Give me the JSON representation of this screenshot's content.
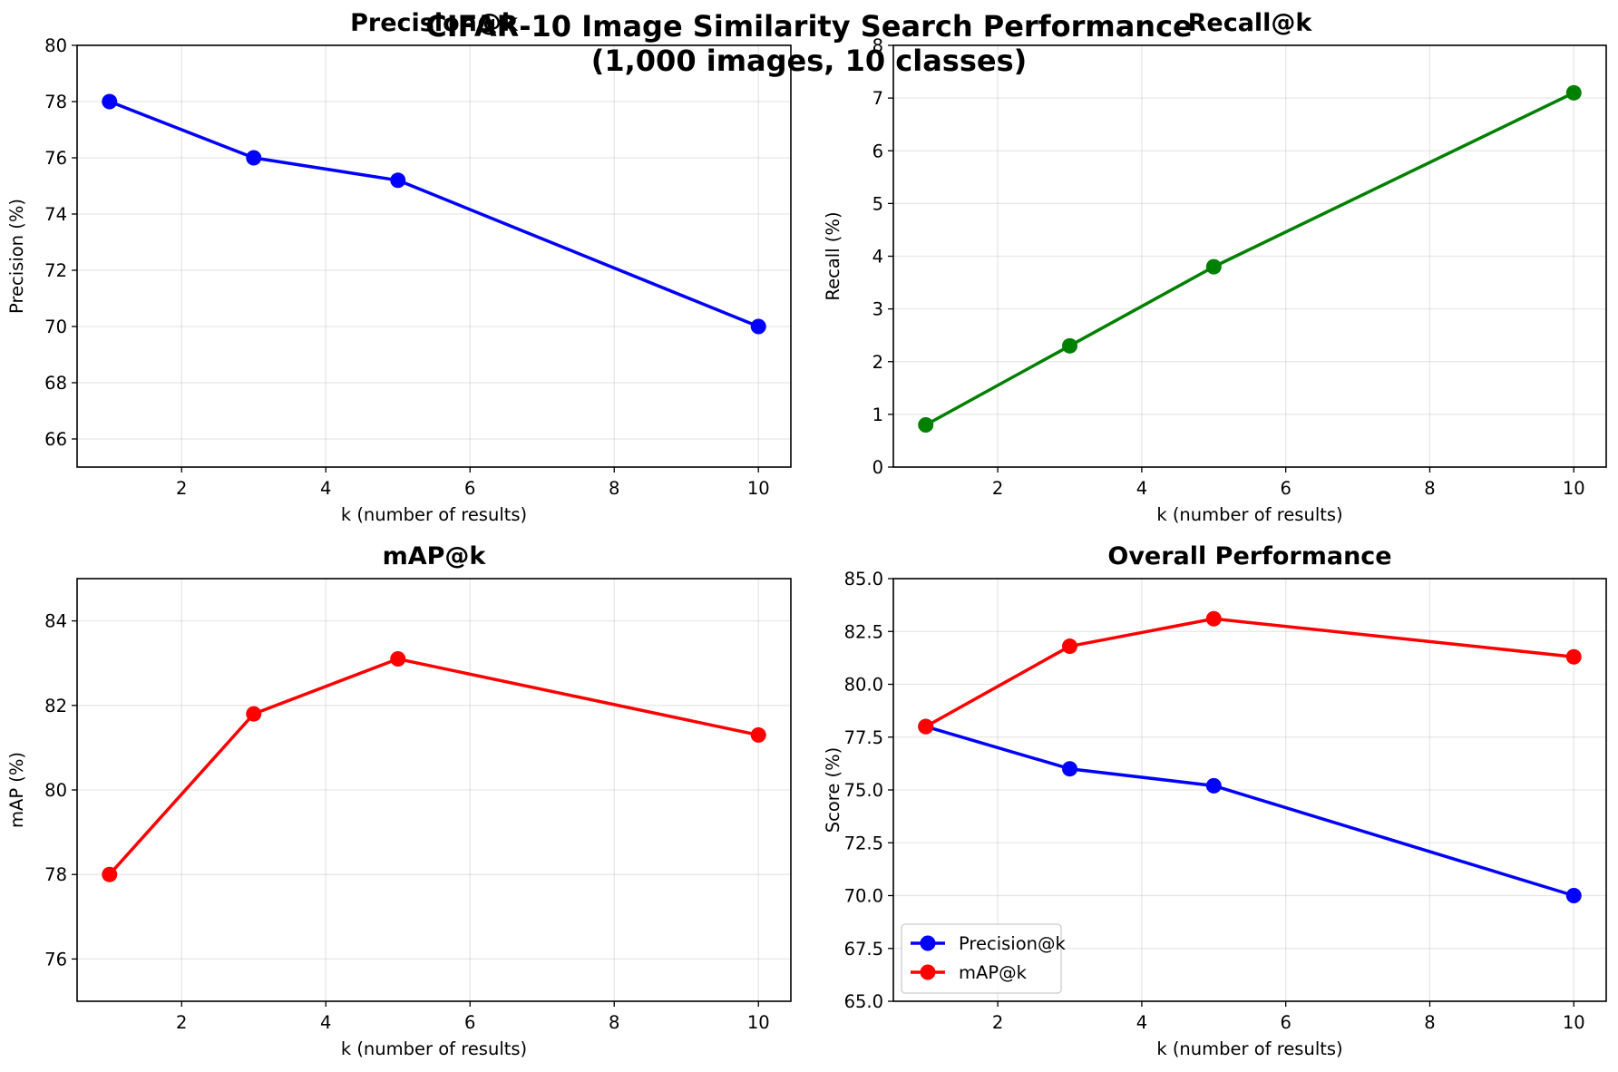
{
  "suptitle": [
    "CIFAR-10 Image Similarity Search Performance",
    "(1,000 images, 10 classes)"
  ],
  "chart_data": [
    {
      "id": "precision",
      "type": "line",
      "title": "Precision@k",
      "xlabel": "k (number of results)",
      "ylabel": "Precision (%)",
      "xlim": [
        0.55,
        10.45
      ],
      "ylim": [
        65,
        80
      ],
      "xticks": [
        2,
        4,
        6,
        8,
        10
      ],
      "yticks": [
        66,
        68,
        70,
        72,
        74,
        76,
        78,
        80
      ],
      "ytick_labels": [
        "66",
        "68",
        "70",
        "72",
        "74",
        "76",
        "78",
        "80"
      ],
      "grid": true,
      "x": [
        1,
        3,
        5,
        10
      ],
      "series": [
        {
          "values": [
            78.0,
            76.0,
            75.2,
            70.0
          ],
          "color": "#0000ff"
        }
      ]
    },
    {
      "id": "recall",
      "type": "line",
      "title": "Recall@k",
      "xlabel": "k (number of results)",
      "ylabel": "Recall (%)",
      "xlim": [
        0.55,
        10.45
      ],
      "ylim": [
        0,
        8
      ],
      "xticks": [
        2,
        4,
        6,
        8,
        10
      ],
      "yticks": [
        0,
        1,
        2,
        3,
        4,
        5,
        6,
        7,
        8
      ],
      "ytick_labels": [
        "0",
        "1",
        "2",
        "3",
        "4",
        "5",
        "6",
        "7",
        "8"
      ],
      "grid": true,
      "x": [
        1,
        3,
        5,
        10
      ],
      "series": [
        {
          "values": [
            0.8,
            2.3,
            3.8,
            7.1
          ],
          "color": "#008000"
        }
      ]
    },
    {
      "id": "map",
      "type": "line",
      "title": "mAP@k",
      "xlabel": "k (number of results)",
      "ylabel": "mAP (%)",
      "xlim": [
        0.55,
        10.45
      ],
      "ylim": [
        75,
        85
      ],
      "xticks": [
        2,
        4,
        6,
        8,
        10
      ],
      "yticks": [
        76,
        78,
        80,
        82,
        84
      ],
      "ytick_labels": [
        "76",
        "78",
        "80",
        "82",
        "84"
      ],
      "grid": true,
      "x": [
        1,
        3,
        5,
        10
      ],
      "series": [
        {
          "values": [
            78.0,
            81.8,
            83.1,
            81.3
          ],
          "color": "#ff0000"
        }
      ]
    },
    {
      "id": "overall",
      "type": "line",
      "title": "Overall Performance",
      "xlabel": "k (number of results)",
      "ylabel": "Score (%)",
      "xlim": [
        0.55,
        10.45
      ],
      "ylim": [
        65,
        85
      ],
      "xticks": [
        2,
        4,
        6,
        8,
        10
      ],
      "yticks": [
        65,
        67.5,
        70,
        72.5,
        75,
        77.5,
        80,
        82.5,
        85
      ],
      "ytick_labels": [
        "65.0",
        "67.5",
        "70.0",
        "72.5",
        "75.0",
        "77.5",
        "80.0",
        "82.5",
        "85.0"
      ],
      "grid": true,
      "legend": "lower-left",
      "x": [
        1,
        3,
        5,
        10
      ],
      "series": [
        {
          "name": "Precision@k",
          "values": [
            78.0,
            76.0,
            75.2,
            70.0
          ],
          "color": "#0000ff"
        },
        {
          "name": "mAP@k",
          "values": [
            78.0,
            81.8,
            83.1,
            81.3
          ],
          "color": "#ff0000"
        }
      ]
    }
  ]
}
